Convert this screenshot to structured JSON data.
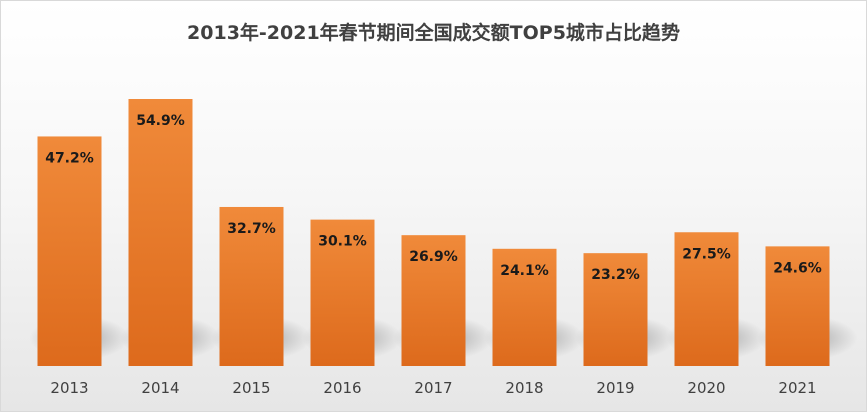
{
  "chart_data": {
    "type": "bar",
    "title": "2013年-2021年春节期间全国成交额TOP5城市占比趋势",
    "categories": [
      "2013",
      "2014",
      "2015",
      "2016",
      "2017",
      "2018",
      "2019",
      "2020",
      "2021"
    ],
    "values": [
      47.2,
      54.9,
      32.7,
      30.1,
      26.9,
      24.1,
      23.2,
      27.5,
      24.6
    ],
    "data_labels": [
      "47.2%",
      "54.9%",
      "32.7%",
      "30.1%",
      "26.9%",
      "24.1%",
      "23.2%",
      "27.5%",
      "24.6%"
    ],
    "unit": "%",
    "ylim": [
      0,
      60
    ],
    "grid": false,
    "legend": "none",
    "bar_color_top": "#F08A3A",
    "bar_color_bottom": "#DD6A1C",
    "xlabel": "",
    "ylabel": ""
  }
}
